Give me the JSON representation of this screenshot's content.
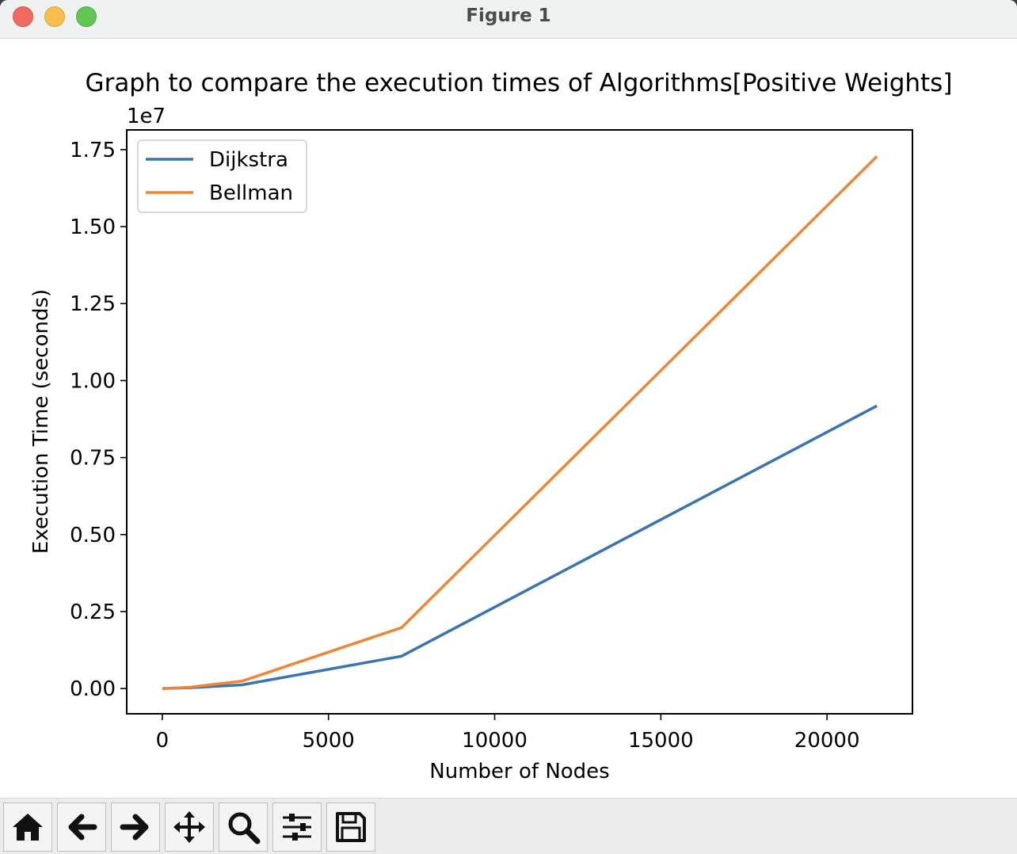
{
  "window": {
    "title": "Figure 1"
  },
  "chart_data": {
    "type": "line",
    "title": "Graph to compare the execution times of Algorithms[Positive Weights]",
    "xlabel": "Number of Nodes",
    "ylabel": "Execution Time (seconds)",
    "y_offset_label": "1e7",
    "xlim": [
      -1070,
      22570
    ],
    "ylim": [
      -0.082,
      1.814
    ],
    "y_unit_multiplier": 10000000,
    "x_ticks": [
      0,
      5000,
      10000,
      15000,
      20000
    ],
    "x_tick_labels": [
      "0",
      "5000",
      "10000",
      "15000",
      "20000"
    ],
    "y_ticks": [
      0,
      0.25,
      0.5,
      0.75,
      1.0,
      1.25,
      1.5,
      1.75
    ],
    "y_tick_labels": [
      "0.00",
      "0.25",
      "0.50",
      "0.75",
      "1.00",
      "1.25",
      "1.50",
      "1.75"
    ],
    "grid": false,
    "legend_position": "top-left",
    "series": [
      {
        "name": "Dijkstra",
        "color": "#3a75af",
        "x": [
          0,
          800,
          2400,
          7200,
          21500
        ],
        "y": [
          0.0,
          0.002,
          0.012,
          0.105,
          0.918
        ]
      },
      {
        "name": "Bellman",
        "color": "#ef8636",
        "x": [
          0,
          800,
          2400,
          7200,
          21500
        ],
        "y": [
          0.0,
          0.004,
          0.024,
          0.198,
          1.728
        ]
      }
    ]
  },
  "toolbar": {
    "buttons": [
      {
        "name": "home-button",
        "icon": "home-icon"
      },
      {
        "name": "back-button",
        "icon": "arrow-left-icon"
      },
      {
        "name": "forward-button",
        "icon": "arrow-right-icon"
      },
      {
        "name": "pan-button",
        "icon": "move-icon"
      },
      {
        "name": "zoom-button",
        "icon": "magnifier-icon"
      },
      {
        "name": "configure-subplots-button",
        "icon": "sliders-icon"
      },
      {
        "name": "save-button",
        "icon": "floppy-disk-icon"
      }
    ]
  }
}
